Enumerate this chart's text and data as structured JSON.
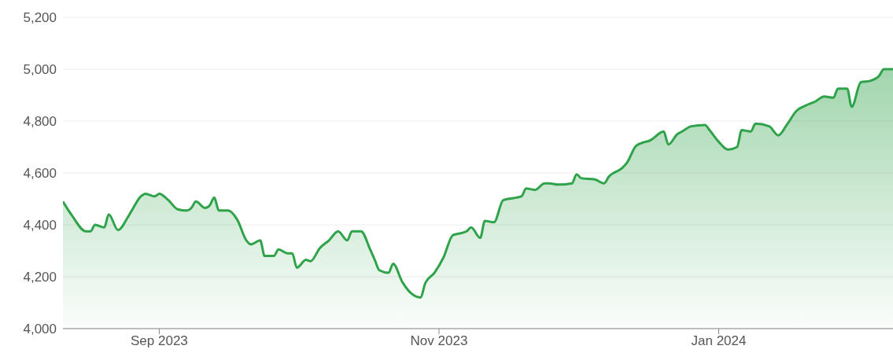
{
  "chart_data": {
    "type": "area",
    "color": "#2fa34a",
    "x": [
      "2023-08-11",
      "2023-08-13",
      "2023-08-16",
      "2023-08-17",
      "2023-08-18",
      "2023-08-20",
      "2023-08-21",
      "2023-08-23",
      "2023-08-25",
      "2023-08-26",
      "2023-08-28",
      "2023-08-29",
      "2023-08-31",
      "2023-09-01",
      "2023-09-03",
      "2023-09-05",
      "2023-09-07",
      "2023-09-08",
      "2023-09-09",
      "2023-09-11",
      "2023-09-12",
      "2023-09-13",
      "2023-09-14",
      "2023-09-16",
      "2023-09-18",
      "2023-09-20",
      "2023-09-21",
      "2023-09-23",
      "2023-09-24",
      "2023-09-26",
      "2023-09-27",
      "2023-09-29",
      "2023-09-30",
      "2023-10-01",
      "2023-10-03",
      "2023-10-04",
      "2023-10-06",
      "2023-10-08",
      "2023-10-10",
      "2023-10-12",
      "2023-10-13",
      "2023-10-15",
      "2023-10-17",
      "2023-10-18",
      "2023-10-19",
      "2023-10-21",
      "2023-10-22",
      "2023-10-24",
      "2023-10-26",
      "2023-10-28",
      "2023-10-29",
      "2023-10-31",
      "2023-11-02",
      "2023-11-04",
      "2023-11-05",
      "2023-11-07",
      "2023-11-08",
      "2023-11-10",
      "2023-11-11",
      "2023-11-13",
      "2023-11-15",
      "2023-11-19",
      "2023-11-20",
      "2023-11-22",
      "2023-11-24",
      "2023-11-25",
      "2023-11-27",
      "2023-11-30",
      "2023-12-01",
      "2023-12-02",
      "2023-12-05",
      "2023-12-07",
      "2023-12-08",
      "2023-12-11",
      "2023-12-12",
      "2023-12-14",
      "2023-12-16",
      "2023-12-17",
      "2023-12-20",
      "2023-12-21",
      "2023-12-23",
      "2023-12-24",
      "2023-12-26",
      "2023-12-29",
      "2023-12-30",
      "2024-01-01",
      "2024-01-03",
      "2024-01-05",
      "2024-01-06",
      "2024-01-08",
      "2024-01-09",
      "2024-01-12",
      "2024-01-14",
      "2024-01-16",
      "2024-01-18",
      "2024-01-20",
      "2024-01-22",
      "2024-01-24",
      "2024-01-26",
      "2024-01-27",
      "2024-01-29",
      "2024-01-30",
      "2024-02-01",
      "2024-02-03",
      "2024-02-05",
      "2024-02-06",
      "2024-02-08"
    ],
    "values": [
      4490,
      4435,
      4375,
      4375,
      4400,
      4390,
      4440,
      4380,
      4425,
      4455,
      4510,
      4520,
      4510,
      4520,
      4495,
      4460,
      4455,
      4465,
      4490,
      4465,
      4475,
      4505,
      4455,
      4455,
      4420,
      4340,
      4325,
      4340,
      4280,
      4280,
      4305,
      4290,
      4290,
      4235,
      4265,
      4260,
      4310,
      4340,
      4375,
      4340,
      4375,
      4375,
      4305,
      4265,
      4225,
      4215,
      4250,
      4180,
      4135,
      4120,
      4175,
      4215,
      4275,
      4360,
      4365,
      4375,
      4390,
      4350,
      4415,
      4410,
      4495,
      4510,
      4540,
      4535,
      4560,
      4560,
      4555,
      4560,
      4595,
      4580,
      4575,
      4560,
      4585,
      4620,
      4640,
      4705,
      4720,
      4725,
      4760,
      4710,
      4750,
      4760,
      4780,
      4785,
      4765,
      4720,
      4690,
      4700,
      4765,
      4760,
      4790,
      4780,
      4745,
      4790,
      4840,
      4860,
      4875,
      4895,
      4890,
      4925,
      4925,
      4855,
      4950,
      4955,
      4975,
      5000,
      5000
    ],
    "xlim": [
      "2023-08-11",
      "2024-02-08"
    ],
    "xticks": [
      {
        "value": "2023-09-01",
        "label": "Sep 2023"
      },
      {
        "value": "2023-11-01",
        "label": "Nov 2023"
      },
      {
        "value": "2024-01-01",
        "label": "Jan 2024"
      }
    ],
    "ylim": [
      4000,
      5200
    ],
    "yticks": [
      {
        "value": 4000,
        "label": "4,000"
      },
      {
        "value": 4200,
        "label": "4,200"
      },
      {
        "value": 4400,
        "label": "4,400"
      },
      {
        "value": 4600,
        "label": "4,600"
      },
      {
        "value": 4800,
        "label": "4,800"
      },
      {
        "value": 5000,
        "label": "5,000"
      },
      {
        "value": 5200,
        "label": "5,200"
      }
    ],
    "grid": "y"
  }
}
